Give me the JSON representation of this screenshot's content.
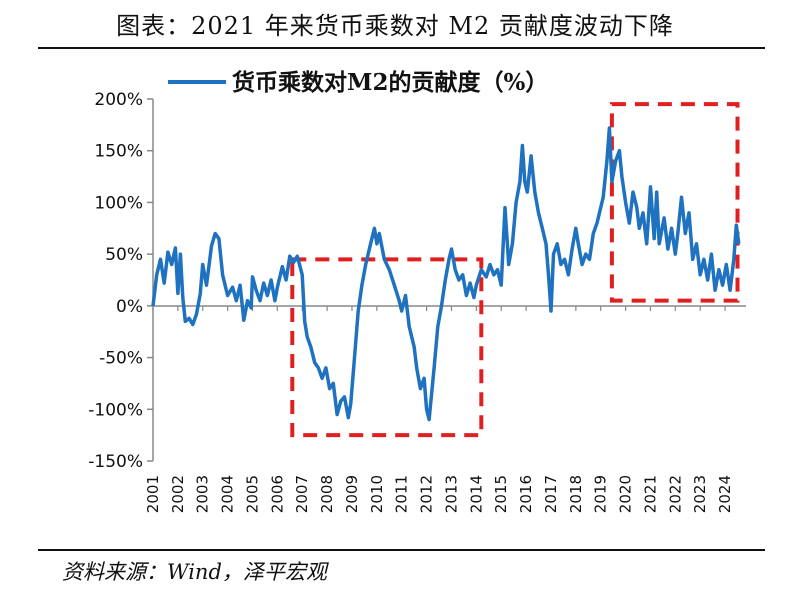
{
  "title": "图表：2021 年来货币乘数对 M2 贡献度波动下降",
  "source": "资料来源：Wind，泽平宏观",
  "colors": {
    "series": "#1f72c0",
    "highlight": "#e02020",
    "axis": "#888888"
  },
  "chart_data": {
    "type": "line",
    "title": "图表：2021 年来货币乘数对 M2 贡献度波动下降",
    "xlabel": "",
    "ylabel": "",
    "ylim": [
      -150,
      200
    ],
    "y_ticks": [
      200,
      150,
      100,
      50,
      0,
      -50,
      -100,
      -150
    ],
    "y_tick_labels": [
      "200%",
      "150%",
      "100%",
      "50%",
      "0%",
      "-50%",
      "-100%",
      "-150%"
    ],
    "x_ticks": [
      "2001",
      "2002",
      "2003",
      "2004",
      "2005",
      "2006",
      "2007",
      "2008",
      "2009",
      "2010",
      "2011",
      "2012",
      "2013",
      "2014",
      "2015",
      "2016",
      "2017",
      "2018",
      "2019",
      "2020",
      "2021",
      "2022",
      "2023",
      "2024"
    ],
    "xlim": [
      2001,
      2024.6
    ],
    "grid": false,
    "legend": {
      "position": "top",
      "entries": [
        "货币乘数对M2的贡献度（%）"
      ]
    },
    "series": [
      {
        "name": "货币乘数对M2的贡献度（%）",
        "points": [
          [
            2001.0,
            0
          ],
          [
            2001.15,
            30
          ],
          [
            2001.3,
            45
          ],
          [
            2001.45,
            22
          ],
          [
            2001.6,
            52
          ],
          [
            2001.75,
            40
          ],
          [
            2001.9,
            56
          ],
          [
            2002.0,
            12
          ],
          [
            2002.1,
            50
          ],
          [
            2002.2,
            8
          ],
          [
            2002.3,
            -15
          ],
          [
            2002.45,
            -12
          ],
          [
            2002.6,
            -18
          ],
          [
            2002.75,
            -8
          ],
          [
            2002.9,
            12
          ],
          [
            2003.0,
            40
          ],
          [
            2003.15,
            20
          ],
          [
            2003.35,
            58
          ],
          [
            2003.5,
            70
          ],
          [
            2003.65,
            65
          ],
          [
            2003.8,
            30
          ],
          [
            2004.0,
            10
          ],
          [
            2004.2,
            18
          ],
          [
            2004.35,
            5
          ],
          [
            2004.5,
            20
          ],
          [
            2004.65,
            -14
          ],
          [
            2004.8,
            5
          ],
          [
            2004.95,
            -2
          ],
          [
            2005.0,
            28
          ],
          [
            2005.15,
            15
          ],
          [
            2005.3,
            5
          ],
          [
            2005.45,
            22
          ],
          [
            2005.6,
            10
          ],
          [
            2005.75,
            25
          ],
          [
            2005.9,
            5
          ],
          [
            2006.0,
            18
          ],
          [
            2006.2,
            38
          ],
          [
            2006.35,
            25
          ],
          [
            2006.5,
            48
          ],
          [
            2006.65,
            42
          ],
          [
            2006.8,
            48
          ],
          [
            2007.0,
            30
          ],
          [
            2007.1,
            -15
          ],
          [
            2007.2,
            -30
          ],
          [
            2007.35,
            -40
          ],
          [
            2007.5,
            -55
          ],
          [
            2007.65,
            -60
          ],
          [
            2007.8,
            -70
          ],
          [
            2007.95,
            -60
          ],
          [
            2008.1,
            -80
          ],
          [
            2008.25,
            -75
          ],
          [
            2008.4,
            -105
          ],
          [
            2008.55,
            -92
          ],
          [
            2008.7,
            -88
          ],
          [
            2008.85,
            -108
          ],
          [
            2008.95,
            -95
          ],
          [
            2009.1,
            -50
          ],
          [
            2009.25,
            -5
          ],
          [
            2009.4,
            20
          ],
          [
            2009.55,
            40
          ],
          [
            2009.75,
            60
          ],
          [
            2009.9,
            75
          ],
          [
            2010.0,
            60
          ],
          [
            2010.1,
            70
          ],
          [
            2010.3,
            45
          ],
          [
            2010.5,
            35
          ],
          [
            2010.7,
            20
          ],
          [
            2010.9,
            5
          ],
          [
            2011.0,
            -5
          ],
          [
            2011.15,
            10
          ],
          [
            2011.3,
            -20
          ],
          [
            2011.5,
            -40
          ],
          [
            2011.6,
            -60
          ],
          [
            2011.75,
            -80
          ],
          [
            2011.9,
            -70
          ],
          [
            2012.0,
            -100
          ],
          [
            2012.1,
            -110
          ],
          [
            2012.3,
            -60
          ],
          [
            2012.45,
            -20
          ],
          [
            2012.6,
            0
          ],
          [
            2012.75,
            25
          ],
          [
            2012.9,
            45
          ],
          [
            2013.0,
            55
          ],
          [
            2013.15,
            35
          ],
          [
            2013.3,
            25
          ],
          [
            2013.45,
            30
          ],
          [
            2013.6,
            10
          ],
          [
            2013.75,
            22
          ],
          [
            2013.9,
            8
          ],
          [
            2014.0,
            20
          ],
          [
            2014.2,
            35
          ],
          [
            2014.4,
            28
          ],
          [
            2014.55,
            40
          ],
          [
            2014.7,
            30
          ],
          [
            2014.85,
            35
          ],
          [
            2015.0,
            20
          ],
          [
            2015.15,
            95
          ],
          [
            2015.3,
            40
          ],
          [
            2015.45,
            60
          ],
          [
            2015.6,
            100
          ],
          [
            2015.75,
            120
          ],
          [
            2015.85,
            155
          ],
          [
            2015.95,
            120
          ],
          [
            2016.05,
            110
          ],
          [
            2016.2,
            145
          ],
          [
            2016.35,
            110
          ],
          [
            2016.5,
            90
          ],
          [
            2016.65,
            75
          ],
          [
            2016.8,
            60
          ],
          [
            2016.9,
            30
          ],
          [
            2017.0,
            -5
          ],
          [
            2017.1,
            50
          ],
          [
            2017.25,
            60
          ],
          [
            2017.4,
            40
          ],
          [
            2017.55,
            45
          ],
          [
            2017.7,
            30
          ],
          [
            2017.85,
            55
          ],
          [
            2018.0,
            75
          ],
          [
            2018.1,
            60
          ],
          [
            2018.25,
            40
          ],
          [
            2018.4,
            50
          ],
          [
            2018.55,
            45
          ],
          [
            2018.7,
            70
          ],
          [
            2018.85,
            80
          ],
          [
            2019.0,
            95
          ],
          [
            2019.1,
            105
          ],
          [
            2019.25,
            140
          ],
          [
            2019.35,
            172
          ],
          [
            2019.45,
            120
          ],
          [
            2019.6,
            140
          ],
          [
            2019.75,
            150
          ],
          [
            2019.85,
            125
          ],
          [
            2020.0,
            100
          ],
          [
            2020.15,
            80
          ],
          [
            2020.3,
            110
          ],
          [
            2020.45,
            95
          ],
          [
            2020.55,
            75
          ],
          [
            2020.7,
            90
          ],
          [
            2020.85,
            60
          ],
          [
            2021.0,
            115
          ],
          [
            2021.15,
            65
          ],
          [
            2021.25,
            110
          ],
          [
            2021.35,
            60
          ],
          [
            2021.55,
            85
          ],
          [
            2021.7,
            55
          ],
          [
            2021.85,
            75
          ],
          [
            2022.0,
            50
          ],
          [
            2022.1,
            70
          ],
          [
            2022.25,
            105
          ],
          [
            2022.4,
            70
          ],
          [
            2022.55,
            90
          ],
          [
            2022.7,
            45
          ],
          [
            2022.85,
            60
          ],
          [
            2023.0,
            30
          ],
          [
            2023.15,
            45
          ],
          [
            2023.3,
            25
          ],
          [
            2023.45,
            50
          ],
          [
            2023.6,
            15
          ],
          [
            2023.75,
            35
          ],
          [
            2023.9,
            20
          ],
          [
            2024.05,
            40
          ],
          [
            2024.2,
            15
          ],
          [
            2024.35,
            45
          ],
          [
            2024.45,
            78
          ],
          [
            2024.55,
            60
          ]
        ]
      }
    ],
    "highlight_boxes": [
      {
        "x_range": [
          2006.6,
          2014.2
        ],
        "y_range": [
          -125,
          45
        ]
      },
      {
        "x_range": [
          2019.45,
          2024.5
        ],
        "y_range": [
          5,
          195
        ]
      }
    ]
  }
}
